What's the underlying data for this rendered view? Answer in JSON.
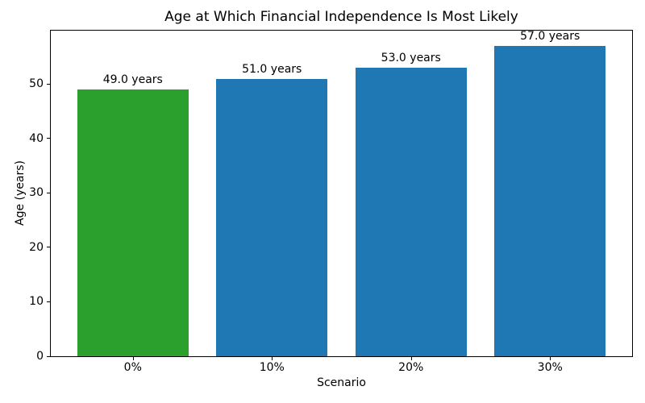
{
  "chart_data": {
    "type": "bar",
    "title": "Age at Which Financial Independence Is Most Likely",
    "xlabel": "Scenario",
    "ylabel": "Age (years)",
    "categories": [
      "0%",
      "10%",
      "20%",
      "30%"
    ],
    "values": [
      49.0,
      51.0,
      53.0,
      57.0
    ],
    "bar_labels": [
      "49.0 years",
      "51.0 years",
      "53.0 years",
      "57.0 years"
    ],
    "bar_colors": [
      "#2ca02c",
      "#1f77b4",
      "#1f77b4",
      "#1f77b4"
    ],
    "yticks": [
      0,
      10,
      20,
      30,
      40,
      50
    ],
    "ylim": [
      0,
      59.85
    ],
    "grid": false,
    "legend": false,
    "spine_color": "#000000",
    "background_color": "#ffffff"
  }
}
